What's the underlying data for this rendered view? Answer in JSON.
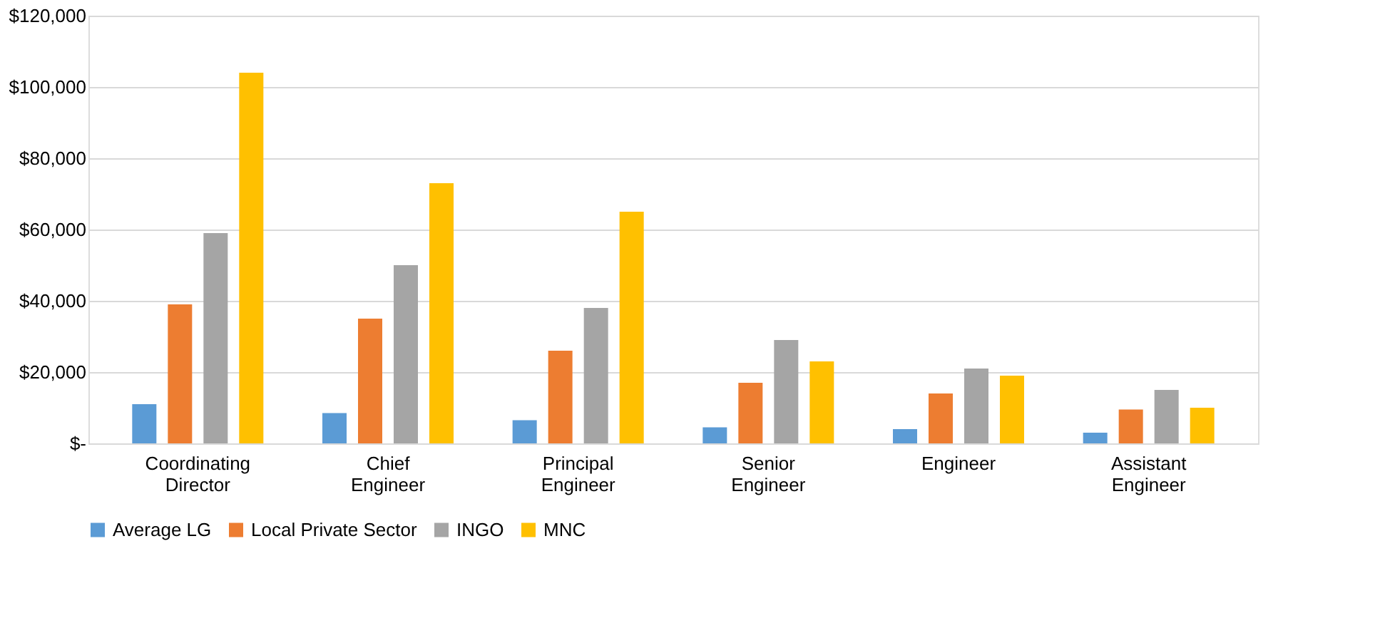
{
  "chart_data": {
    "type": "bar",
    "categories": [
      "Coordinating Director",
      "Chief Engineer",
      "Principal Engineer",
      "Senior Engineer",
      "Engineer",
      "Assistant Engineer"
    ],
    "series": [
      {
        "name": "Average LG",
        "color": "#5b9bd5",
        "values": [
          11000,
          8500,
          6500,
          4500,
          4000,
          3000
        ]
      },
      {
        "name": "Local Private Sector",
        "color": "#ed7d31",
        "values": [
          39000,
          35000,
          26000,
          17000,
          14000,
          9500
        ]
      },
      {
        "name": "INGO",
        "color": "#a5a5a5",
        "values": [
          59000,
          50000,
          38000,
          29000,
          21000,
          15000
        ]
      },
      {
        "name": "MNC",
        "color": "#ffc000",
        "values": [
          104000,
          73000,
          65000,
          23000,
          19000,
          10000
        ]
      }
    ],
    "ylim": [
      0,
      120000
    ],
    "yticks": [
      {
        "value": 0,
        "label": "$-"
      },
      {
        "value": 20000,
        "label": "$20,000"
      },
      {
        "value": 40000,
        "label": "$40,000"
      },
      {
        "value": 60000,
        "label": "$60,000"
      },
      {
        "value": 80000,
        "label": "$80,000"
      },
      {
        "value": 100000,
        "label": "$100,000"
      },
      {
        "value": 120000,
        "label": "$120,000"
      }
    ],
    "grid": "y",
    "legend": "bottom"
  }
}
